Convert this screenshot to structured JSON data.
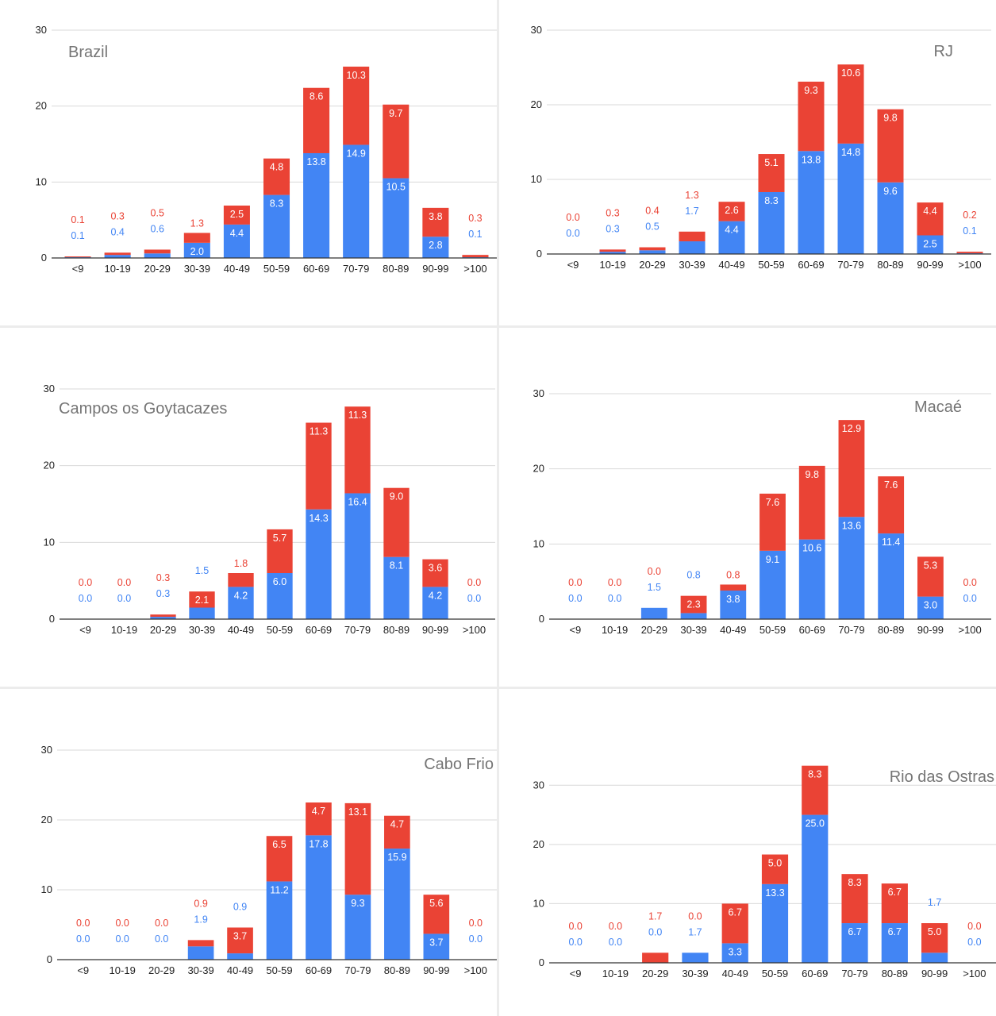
{
  "colors": {
    "blue": "#4285f4",
    "red": "#ea4335",
    "grid": "#d9d9d9",
    "title": "#757575"
  },
  "chart_data": [
    {
      "type": "bar",
      "stacked": true,
      "title": "Brazil",
      "title_align": "left",
      "categories": [
        "<9",
        "10-19",
        "20-29",
        "30-39",
        "40-49",
        "50-59",
        "60-69",
        "70-79",
        "80-89",
        "90-99",
        ">100"
      ],
      "yticks": [
        0,
        10,
        20,
        30
      ],
      "ylim": [
        0,
        30
      ],
      "series": [
        {
          "color": "blue",
          "values": [
            0.1,
            0.4,
            0.6,
            2.0,
            4.4,
            8.3,
            13.8,
            14.9,
            10.5,
            2.8,
            0.1
          ]
        },
        {
          "color": "red",
          "values": [
            0.1,
            0.3,
            0.5,
            1.3,
            2.5,
            4.8,
            8.6,
            10.3,
            9.7,
            3.8,
            0.3
          ]
        }
      ],
      "grid": true
    },
    {
      "type": "bar",
      "stacked": true,
      "title": "RJ",
      "title_align": "right",
      "categories": [
        "<9",
        "10-19",
        "20-29",
        "30-39",
        "40-49",
        "50-59",
        "60-69",
        "70-79",
        "80-89",
        "90-99",
        ">100"
      ],
      "yticks": [
        0,
        10,
        20,
        30
      ],
      "ylim": [
        0,
        30
      ],
      "series": [
        {
          "color": "blue",
          "values": [
            0.0,
            0.3,
            0.5,
            1.7,
            4.4,
            8.3,
            13.8,
            14.8,
            9.6,
            2.5,
            0.1
          ]
        },
        {
          "color": "red",
          "values": [
            0.0,
            0.3,
            0.4,
            1.3,
            2.6,
            5.1,
            9.3,
            10.6,
            9.8,
            4.4,
            0.2
          ]
        }
      ],
      "grid": true
    },
    {
      "type": "bar",
      "stacked": true,
      "title": "Campos os Goytacazes",
      "title_align": "left",
      "categories": [
        "<9",
        "10-19",
        "20-29",
        "30-39",
        "40-49",
        "50-59",
        "60-69",
        "70-79",
        "80-89",
        "90-99",
        ">100"
      ],
      "yticks": [
        0,
        10,
        20,
        30
      ],
      "ylim": [
        0,
        30
      ],
      "series": [
        {
          "color": "blue",
          "values": [
            0.0,
            0.0,
            0.3,
            1.5,
            4.2,
            6.0,
            14.3,
            16.4,
            8.1,
            4.2,
            0.0
          ]
        },
        {
          "color": "red",
          "values": [
            0.0,
            0.0,
            0.3,
            2.1,
            1.8,
            5.7,
            11.3,
            11.3,
            9.0,
            3.6,
            0.0
          ]
        }
      ],
      "grid": true
    },
    {
      "type": "bar",
      "stacked": true,
      "title": "Macaé",
      "title_align": "right",
      "categories": [
        "<9",
        "10-19",
        "20-29",
        "30-39",
        "40-49",
        "50-59",
        "60-69",
        "70-79",
        "80-89",
        "90-99",
        ">100"
      ],
      "yticks": [
        0,
        10,
        20,
        30
      ],
      "ylim": [
        0,
        30
      ],
      "series": [
        {
          "color": "blue",
          "values": [
            0.0,
            0.0,
            1.5,
            0.8,
            3.8,
            9.1,
            10.6,
            13.6,
            11.4,
            3.0,
            0.0
          ]
        },
        {
          "color": "red",
          "values": [
            0.0,
            0.0,
            0.0,
            2.3,
            0.8,
            7.6,
            9.8,
            12.9,
            7.6,
            5.3,
            0.0
          ]
        }
      ],
      "grid": true
    },
    {
      "type": "bar",
      "stacked": true,
      "title": "Cabo Frio",
      "title_align": "right",
      "categories": [
        "<9",
        "10-19",
        "20-29",
        "30-39",
        "40-49",
        "50-59",
        "60-69",
        "70-79",
        "80-89",
        "90-99",
        ">100"
      ],
      "yticks": [
        0,
        10,
        20,
        30
      ],
      "ylim": [
        0,
        30
      ],
      "series": [
        {
          "color": "blue",
          "values": [
            0.0,
            0.0,
            0.0,
            1.9,
            0.9,
            11.2,
            17.8,
            9.3,
            15.9,
            3.7,
            0.0
          ]
        },
        {
          "color": "red",
          "values": [
            0.0,
            0.0,
            0.0,
            0.9,
            3.7,
            6.5,
            4.7,
            13.1,
            4.7,
            5.6,
            0.0
          ]
        }
      ],
      "grid": true
    },
    {
      "type": "bar",
      "stacked": true,
      "title": "Rio das Ostras",
      "title_align": "right",
      "categories": [
        "<9",
        "10-19",
        "20-29",
        "30-39",
        "40-49",
        "50-59",
        "60-69",
        "70-79",
        "80-89",
        "90-99",
        ">100"
      ],
      "yticks": [
        0,
        10,
        20,
        30
      ],
      "ylim": [
        0,
        35
      ],
      "series": [
        {
          "color": "blue",
          "values": [
            0.0,
            0.0,
            0.0,
            1.7,
            3.3,
            13.3,
            25.0,
            6.7,
            6.7,
            1.7,
            0.0
          ]
        },
        {
          "color": "red",
          "values": [
            0.0,
            0.0,
            1.7,
            0.0,
            6.7,
            5.0,
            8.3,
            8.3,
            6.7,
            5.0,
            0.0
          ]
        }
      ],
      "grid": true
    }
  ]
}
